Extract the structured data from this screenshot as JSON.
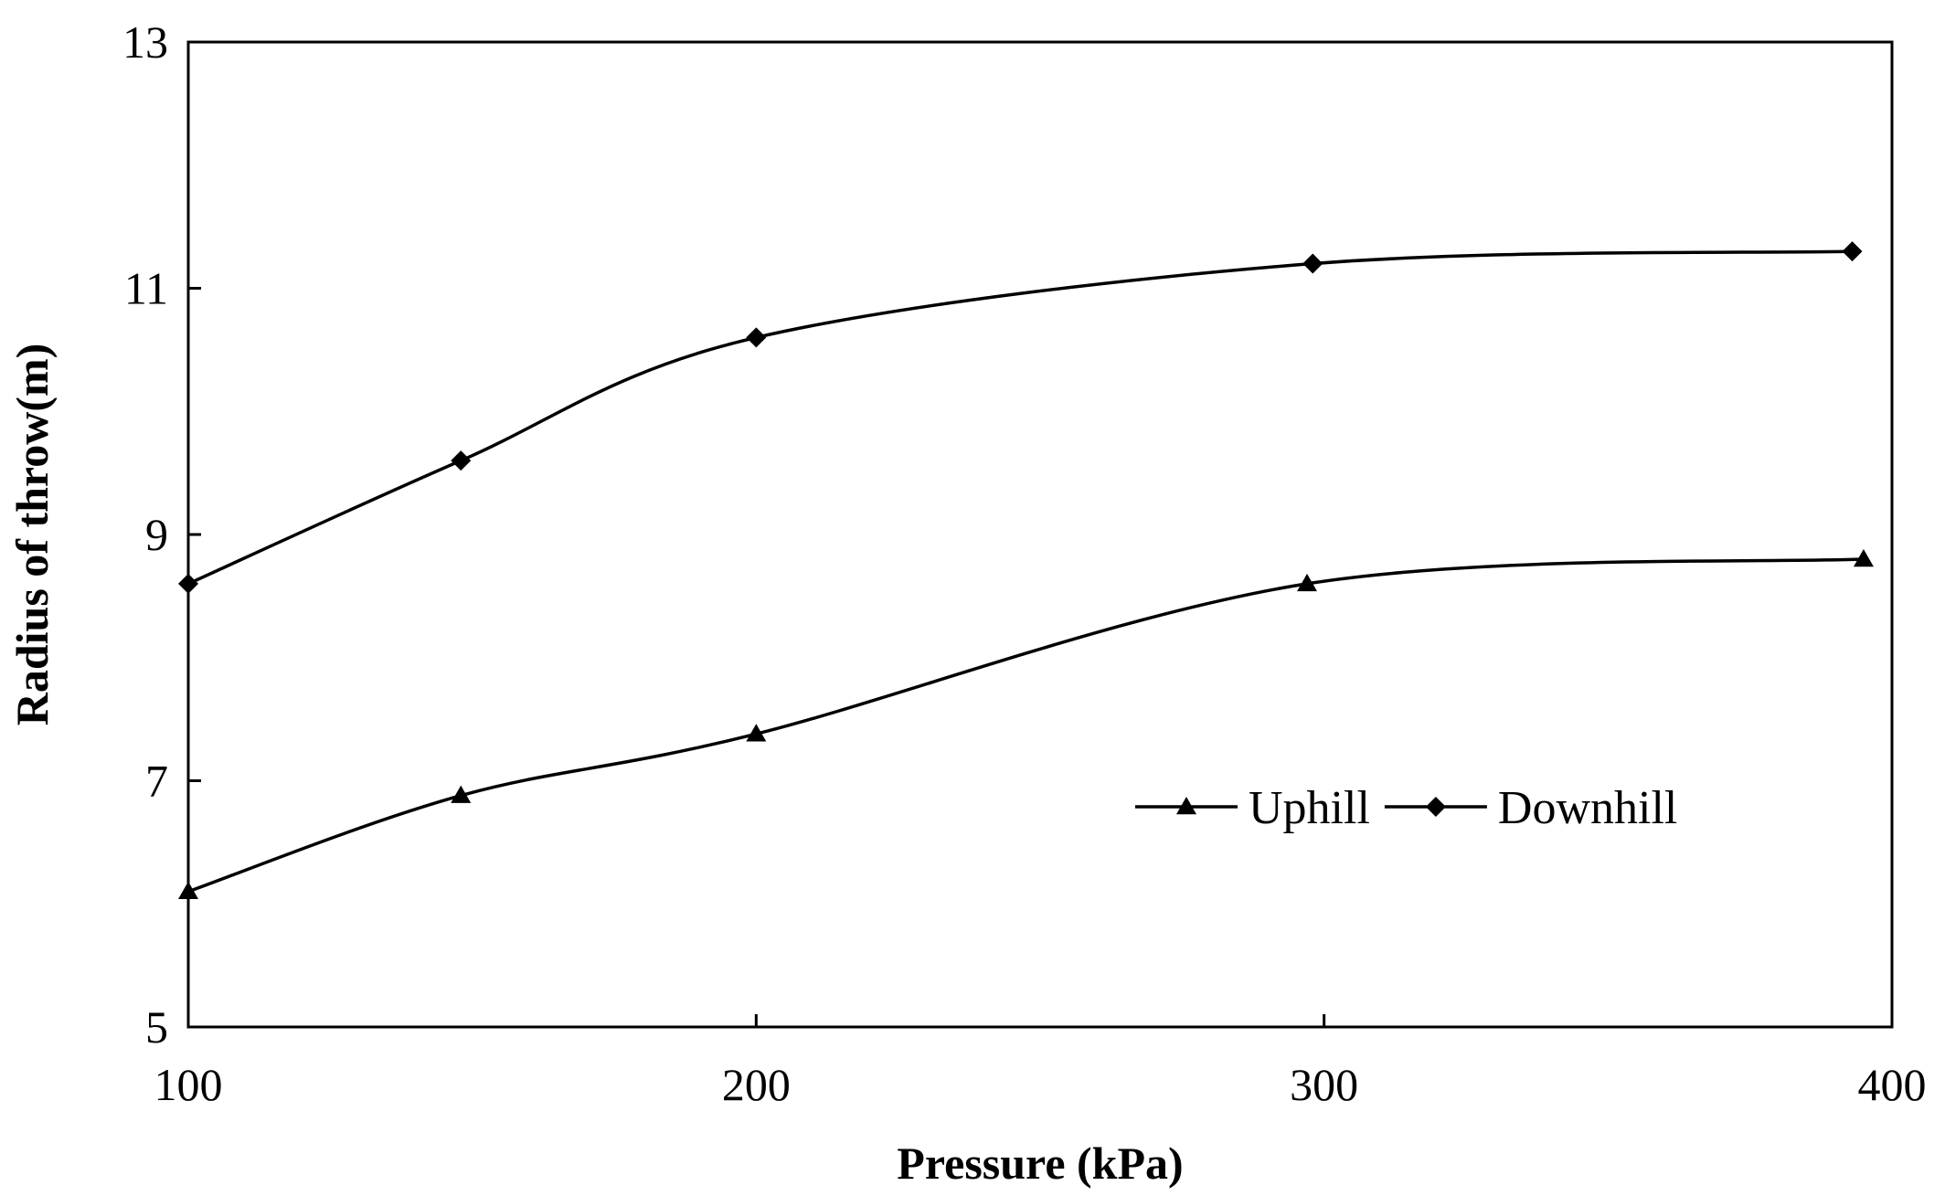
{
  "chart_data": {
    "type": "line",
    "title": "",
    "xlabel": "Pressure (kPa)",
    "ylabel": "Radius of throw(m)",
    "xlim": [
      100,
      400
    ],
    "ylim": [
      5,
      13
    ],
    "xticks": [
      100,
      200,
      300,
      400
    ],
    "yticks": [
      5,
      7,
      9,
      11,
      13
    ],
    "grid": false,
    "legend": "inside-right",
    "smooth": true,
    "series": [
      {
        "name": "Uphill",
        "marker": "triangle",
        "x": [
          100,
          148,
          200,
          297,
          395
        ],
        "y": [
          6.1,
          6.88,
          7.38,
          8.6,
          8.8
        ]
      },
      {
        "name": "Downhill",
        "marker": "diamond",
        "x": [
          100,
          148,
          200,
          298,
          393
        ],
        "y": [
          8.6,
          9.6,
          10.6,
          11.2,
          11.3
        ]
      }
    ]
  }
}
